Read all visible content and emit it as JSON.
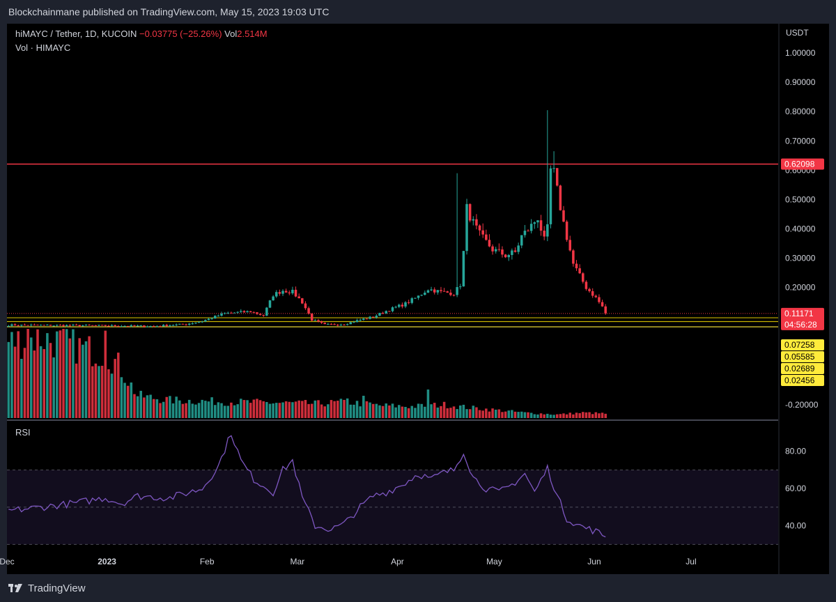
{
  "header": {
    "published": "Blockchainmane published on TradingView.com, May 15, 2023 19:03 UTC"
  },
  "legend": {
    "symbol": "hiMAYC / Tether, 1D, KUCOIN",
    "change": "−0.03775 (−25.26%)",
    "vol_label": "Vol",
    "vol_value": "2.514M",
    "sub": "Vol · HIMAYC"
  },
  "rsi_label": "RSI",
  "footer": {
    "brand": "TradingView"
  },
  "colors": {
    "up": "#26a69a",
    "down": "#f23645",
    "resistance": "#f23645",
    "support": "#ffeb3b",
    "rsi": "#7e57c2"
  },
  "chart_data": [
    {
      "type": "candlestick",
      "title": "hiMAYC / Tether, 1D, KUCOIN",
      "yunit": "USDT",
      "ylim": [
        -0.25,
        1.1
      ],
      "xlim": [
        "2022-12-01",
        "2023-07-28"
      ],
      "x_ticks": [
        "Dec",
        "2023",
        "Feb",
        "Mar",
        "Apr",
        "May",
        "Jun",
        "Jul"
      ],
      "x_tick_dates": [
        "2022-12-01",
        "2023-01-01",
        "2023-02-01",
        "2023-03-01",
        "2023-04-01",
        "2023-05-01",
        "2023-06-01",
        "2023-07-01"
      ],
      "y_ticks": [
        "1.00000",
        "0.90000",
        "0.80000",
        "0.70000",
        "0.60000",
        "0.50000",
        "0.40000",
        "0.30000",
        "0.20000",
        "-0.20000"
      ],
      "y_tick_values": [
        1.0,
        0.9,
        0.8,
        0.7,
        0.6,
        0.5,
        0.4,
        0.3,
        0.2,
        -0.2
      ],
      "horizontal_lines": [
        {
          "value": 0.62098,
          "label": "0.62098",
          "color": "#f23645"
        },
        {
          "value": 0.0968,
          "label": "",
          "color": "#c8b400"
        },
        {
          "value": 0.084,
          "label": "",
          "color": "#c8b400"
        },
        {
          "value": 0.066,
          "label": "",
          "color": "#ffeb3b"
        }
      ],
      "price_labels": [
        {
          "value": 0.11171,
          "label": "0.11171",
          "countdown": "04:56:28",
          "color": "#f23645"
        },
        {
          "value": 0.07258,
          "label": "0.07258",
          "color": "#ffeb3b"
        },
        {
          "value": 0.05585,
          "label": "0.05585",
          "color": "#ffeb3b"
        },
        {
          "value": 0.02689,
          "label": "0.02689",
          "color": "#ffeb3b"
        },
        {
          "value": 0.02456,
          "label": "0.02456",
          "color": "#ffeb3b"
        }
      ],
      "candles_start": "2022-12-01",
      "close_anchors": [
        [
          0,
          0.072
        ],
        [
          30,
          0.07
        ],
        [
          45,
          0.068
        ],
        [
          55,
          0.075
        ],
        [
          60,
          0.085
        ],
        [
          67,
          0.112
        ],
        [
          75,
          0.118
        ],
        [
          79,
          0.105
        ],
        [
          82,
          0.175
        ],
        [
          85,
          0.19
        ],
        [
          88,
          0.185
        ],
        [
          91,
          0.15
        ],
        [
          94,
          0.09
        ],
        [
          98,
          0.073
        ],
        [
          104,
          0.075
        ],
        [
          109,
          0.09
        ],
        [
          113,
          0.1
        ],
        [
          117,
          0.12
        ],
        [
          123,
          0.145
        ],
        [
          127,
          0.17
        ],
        [
          130,
          0.195
        ],
        [
          134,
          0.185
        ],
        [
          138,
          0.18
        ],
        [
          140,
          0.21
        ],
        [
          141,
          0.32
        ],
        [
          142,
          0.47
        ],
        [
          144,
          0.42
        ],
        [
          146,
          0.38
        ],
        [
          150,
          0.33
        ],
        [
          154,
          0.31
        ],
        [
          157,
          0.32
        ],
        [
          159,
          0.375
        ],
        [
          162,
          0.41
        ],
        [
          164,
          0.44
        ],
        [
          166,
          0.36
        ],
        [
          167,
          0.4
        ],
        [
          168,
          0.6
        ],
        [
          169,
          0.59
        ],
        [
          170,
          0.53
        ],
        [
          172,
          0.42
        ],
        [
          175,
          0.28
        ],
        [
          177,
          0.24
        ],
        [
          179,
          0.2
        ],
        [
          182,
          0.165
        ],
        [
          184,
          0.135
        ],
        [
          185,
          0.112
        ]
      ],
      "spikes": [
        [
          139,
          0.59
        ],
        [
          167,
          0.805
        ],
        [
          169,
          0.665
        ]
      ]
    },
    {
      "type": "bar",
      "title": "Vol · HIMAYC",
      "values_relative_anchors": [
        [
          0,
          0.85
        ],
        [
          10,
          0.9
        ],
        [
          30,
          0.72
        ],
        [
          34,
          0.6
        ],
        [
          40,
          0.25
        ],
        [
          50,
          0.2
        ],
        [
          70,
          0.18
        ],
        [
          85,
          0.17
        ],
        [
          95,
          0.16
        ],
        [
          105,
          0.18
        ],
        [
          115,
          0.14
        ],
        [
          125,
          0.13
        ],
        [
          135,
          0.15
        ],
        [
          142,
          0.12
        ],
        [
          160,
          0.06
        ],
        [
          170,
          0.04
        ],
        [
          178,
          0.06
        ],
        [
          185,
          0.05
        ]
      ],
      "spikes": [
        [
          6,
          1.0
        ],
        [
          30,
          0.98
        ],
        [
          105,
          0.22
        ],
        [
          110,
          0.25
        ],
        [
          130,
          0.32
        ]
      ]
    },
    {
      "type": "line",
      "title": "RSI",
      "ylim": [
        26,
        96
      ],
      "y_ticks": [
        "80.00",
        "60.00",
        "40.00"
      ],
      "y_tick_values": [
        80,
        60,
        40
      ],
      "bands": [
        70,
        50,
        30
      ],
      "anchors": [
        [
          0,
          48
        ],
        [
          10,
          50
        ],
        [
          20,
          52
        ],
        [
          30,
          55
        ],
        [
          35,
          52
        ],
        [
          40,
          56
        ],
        [
          50,
          55
        ],
        [
          60,
          60
        ],
        [
          65,
          72
        ],
        [
          69,
          90
        ],
        [
          72,
          75
        ],
        [
          76,
          65
        ],
        [
          82,
          58
        ],
        [
          85,
          70
        ],
        [
          88,
          75
        ],
        [
          91,
          55
        ],
        [
          95,
          40
        ],
        [
          100,
          38
        ],
        [
          104,
          41
        ],
        [
          109,
          50
        ],
        [
          113,
          56
        ],
        [
          117,
          58
        ],
        [
          122,
          62
        ],
        [
          127,
          68
        ],
        [
          131,
          65
        ],
        [
          134,
          68
        ],
        [
          138,
          70
        ],
        [
          141,
          80
        ],
        [
          144,
          66
        ],
        [
          148,
          60
        ],
        [
          152,
          58
        ],
        [
          156,
          62
        ],
        [
          160,
          68
        ],
        [
          163,
          58
        ],
        [
          167,
          71
        ],
        [
          170,
          56
        ],
        [
          173,
          44
        ],
        [
          177,
          40
        ],
        [
          182,
          37
        ],
        [
          185,
          34
        ]
      ]
    }
  ]
}
